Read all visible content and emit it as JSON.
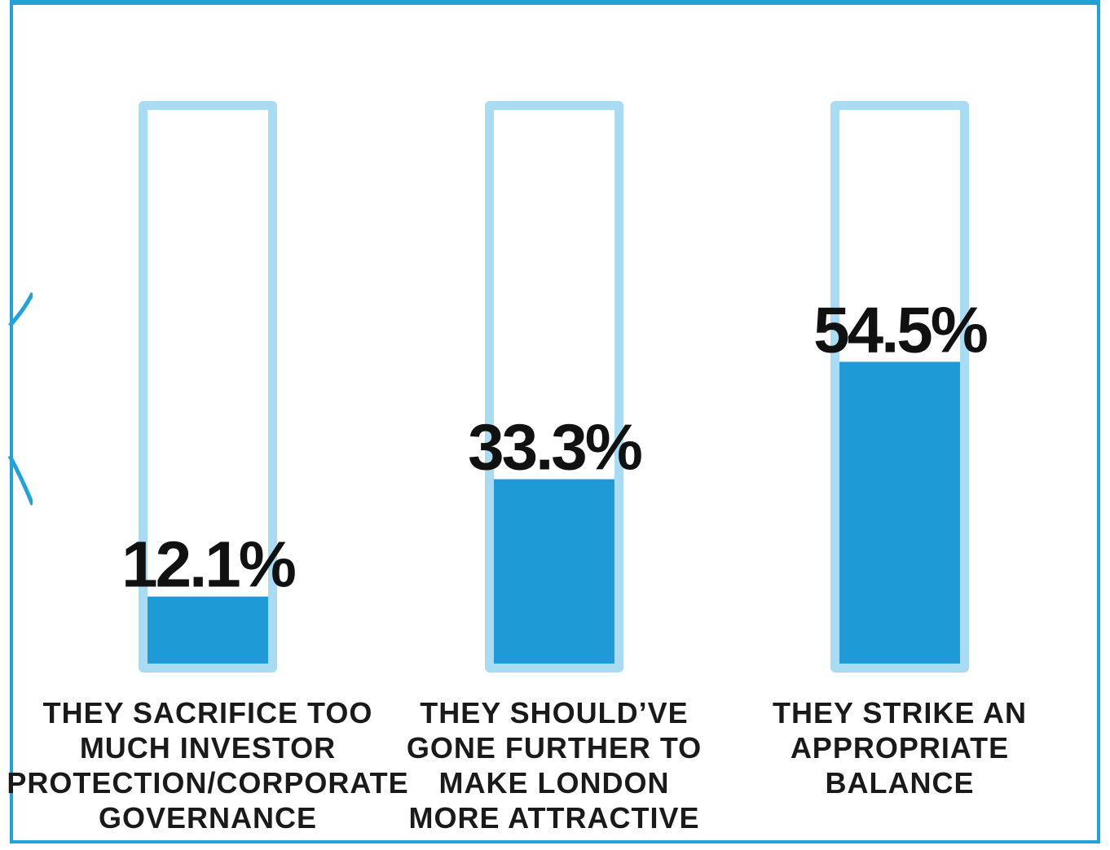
{
  "chart_data": {
    "type": "bar",
    "categories": [
      [
        "THEY SACRIFICE TOO",
        "MUCH INVESTOR",
        "PROTECTION/CORPORATE",
        "GOVERNANCE"
      ],
      [
        "THEY SHOULD’VE",
        "GONE FURTHER TO",
        "MAKE LONDON",
        "MORE ATTRACTIVE"
      ],
      [
        "THEY STRIKE AN",
        "APPROPRIATE",
        "BALANCE"
      ]
    ],
    "values": [
      12.1,
      33.3,
      54.5
    ],
    "value_labels": [
      "12.1%",
      "33.3%",
      "54.5%"
    ],
    "ylim": [
      0,
      100
    ],
    "grid": false,
    "colors": {
      "fill": "#1e9bd7",
      "tube": "#a9dcf2",
      "frame": "#1fa3d8",
      "text": "#111111"
    }
  }
}
